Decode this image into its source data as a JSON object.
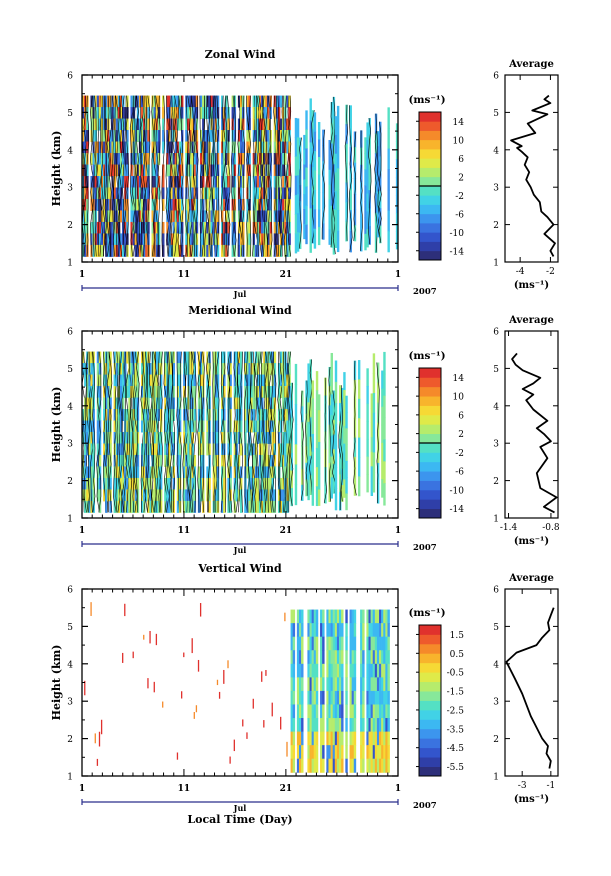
{
  "chart_data": [
    {
      "type": "heatmap",
      "title": "Zonal Wind",
      "ylabel": "Height (km)",
      "ylim": [
        1,
        6
      ],
      "yticks": [
        "1",
        "2",
        "3",
        "4",
        "5",
        "6"
      ],
      "xticks": [
        "1",
        "11",
        "21",
        "1"
      ],
      "month_label": "Jul",
      "year_label": "2007",
      "colorbar": {
        "unit": "(ms⁻¹)",
        "labels": [
          "14",
          "10",
          "6",
          "2",
          "-2",
          "-6",
          "-10",
          "-14"
        ],
        "range": [
          -16,
          16
        ],
        "levels": 16,
        "zero_line": 0
      },
      "average_profile": {
        "title": "Average",
        "xlabel": "(ms⁻¹)",
        "xticks": [
          "-4",
          "-2"
        ],
        "xlim": [
          -5,
          -1.5
        ],
        "ylim": [
          1,
          6
        ],
        "x": [
          -1.8,
          -2.0,
          -1.7,
          -2.4,
          -1.8,
          -2.2,
          -2.6,
          -2.7,
          -3.1,
          -3.3,
          -3.6,
          -3.4,
          -3.7,
          -3.5,
          -3.9,
          -4.2,
          -3.9,
          -4.6,
          -3.0,
          -3.5,
          -2.2,
          -3.2,
          -2.0,
          -2.4,
          -2.1
        ],
        "y": [
          1.15,
          1.3,
          1.5,
          1.75,
          2.0,
          2.2,
          2.35,
          2.6,
          2.8,
          3.0,
          3.2,
          3.4,
          3.6,
          3.8,
          3.95,
          4.05,
          4.1,
          4.25,
          4.45,
          4.7,
          4.95,
          5.05,
          5.25,
          5.35,
          5.45
        ]
      }
    },
    {
      "type": "heatmap",
      "title": "Meridional Wind",
      "ylabel": "Height (km)",
      "ylim": [
        1,
        6
      ],
      "yticks": [
        "1",
        "2",
        "3",
        "4",
        "5",
        "6"
      ],
      "xticks": [
        "1",
        "11",
        "21",
        "1"
      ],
      "month_label": "Jul",
      "year_label": "2007",
      "colorbar": {
        "unit": "(ms⁻¹)",
        "labels": [
          "14",
          "10",
          "6",
          "2",
          "-2",
          "-6",
          "-10",
          "-14"
        ],
        "range": [
          -16,
          16
        ],
        "levels": 16,
        "zero_line": 0
      },
      "average_profile": {
        "title": "Average",
        "xlabel": "(ms⁻¹)",
        "xticks": [
          "-1.4",
          "-0.8"
        ],
        "xlim": [
          -1.45,
          -0.7
        ],
        "ylim": [
          1,
          6
        ],
        "x": [
          -0.75,
          -0.9,
          -0.72,
          -0.95,
          -1.0,
          -0.85,
          -0.95,
          -0.8,
          -0.9,
          -1.0,
          -0.85,
          -1.05,
          -1.15,
          -1.05,
          -1.2,
          -1.05,
          -0.95,
          -1.2,
          -1.3,
          -1.35,
          -1.28
        ],
        "y": [
          1.15,
          1.3,
          1.55,
          1.8,
          2.2,
          2.6,
          2.9,
          3.05,
          3.25,
          3.4,
          3.6,
          3.9,
          4.15,
          4.3,
          4.45,
          4.6,
          4.75,
          4.95,
          5.1,
          5.25,
          5.4
        ]
      }
    },
    {
      "type": "heatmap",
      "title": "Vertical Wind",
      "ylabel": "Height (km)",
      "xlabel": "Local Time (Day)",
      "ylim": [
        1,
        6
      ],
      "yticks": [
        "1",
        "2",
        "3",
        "4",
        "5",
        "6"
      ],
      "xticks": [
        "1",
        "11",
        "21",
        "1"
      ],
      "month_label": "Jul",
      "year_label": "2007",
      "colorbar": {
        "unit": "(ms⁻¹)",
        "labels": [
          "1.5",
          "0.5",
          "-0.5",
          "-1.5",
          "-2.5",
          "-3.5",
          "-4.5",
          "-5.5"
        ],
        "range": [
          -6,
          2
        ],
        "levels": 16
      },
      "average_profile": {
        "title": "Average",
        "xlabel": "(ms⁻¹)",
        "xticks": [
          "-3",
          "-1"
        ],
        "xlim": [
          -4.2,
          -0.5
        ],
        "ylim": [
          1,
          6
        ],
        "x": [
          -1.1,
          -1.0,
          -1.3,
          -1.2,
          -1.6,
          -2.0,
          -2.4,
          -2.7,
          -3.0,
          -3.5,
          -4.1,
          -3.4,
          -2.0,
          -1.6,
          -1.1,
          -1.2,
          -1.0,
          -0.8
        ],
        "y": [
          1.2,
          1.4,
          1.6,
          1.8,
          2.0,
          2.3,
          2.6,
          2.9,
          3.2,
          3.6,
          4.05,
          4.3,
          4.5,
          4.7,
          4.9,
          5.1,
          5.3,
          5.5
        ]
      }
    }
  ]
}
